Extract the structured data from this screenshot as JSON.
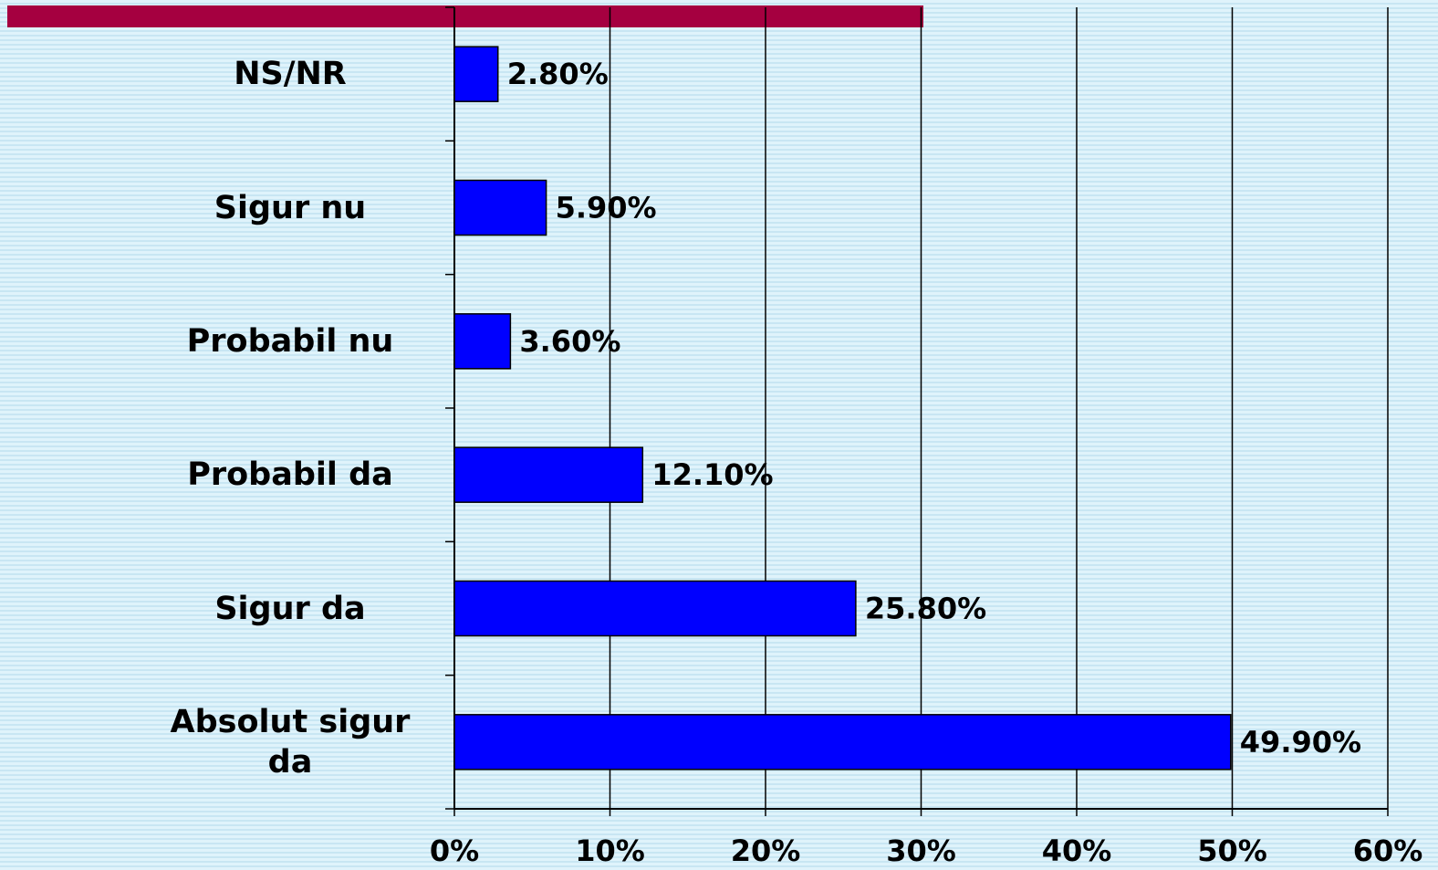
{
  "chart_data": {
    "type": "bar",
    "orientation": "horizontal",
    "categories": [
      "NS/NR",
      "Sigur nu",
      "Probabil nu",
      "Probabil da",
      "Sigur da",
      "Absolut sigur da"
    ],
    "values": [
      2.8,
      5.9,
      3.6,
      12.1,
      25.8,
      49.9
    ],
    "value_labels": [
      "2.80%",
      "5.90%",
      "3.60%",
      "12.10%",
      "25.80%",
      "49.90%"
    ],
    "color": "#0000ff",
    "xlim": [
      0,
      60
    ],
    "xticks": [
      {
        "value": 0,
        "label": "0%"
      },
      {
        "value": 10,
        "label": "10%"
      },
      {
        "value": 20,
        "label": "20%"
      },
      {
        "value": 30,
        "label": "30%"
      },
      {
        "value": 40,
        "label": "40%"
      },
      {
        "value": 50,
        "label": "50%"
      },
      {
        "value": 60,
        "label": "60%"
      }
    ],
    "grid": true
  }
}
